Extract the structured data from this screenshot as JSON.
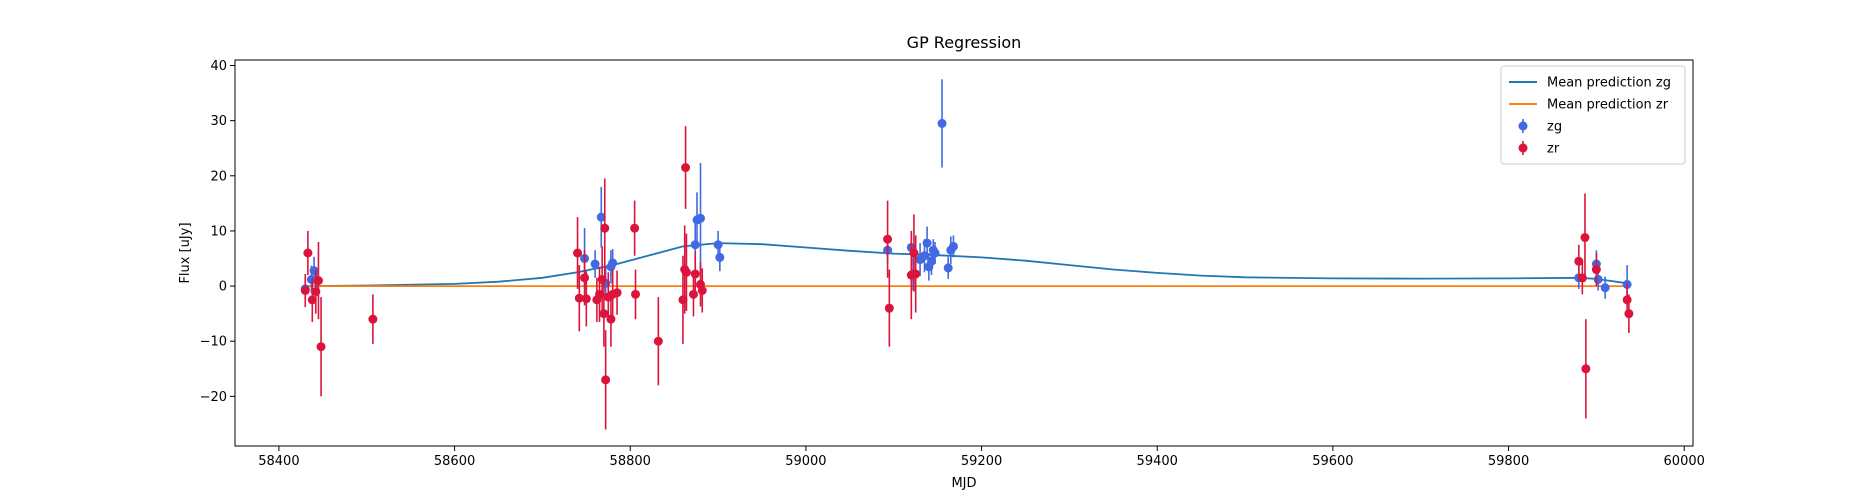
{
  "chart_data": {
    "type": "scatter",
    "title": "GP Regression",
    "xlabel": "MJD",
    "ylabel": "Flux [uJy]",
    "xlim": [
      58350,
      60010
    ],
    "ylim": [
      -29,
      41
    ],
    "xticks": [
      58400,
      58600,
      58800,
      59000,
      59200,
      59400,
      59600,
      59800,
      60000
    ],
    "yticks": [
      -20,
      -10,
      0,
      10,
      20,
      30,
      40
    ],
    "legend": {
      "position": "top-right",
      "entries": [
        {
          "label": "Mean prediction zg",
          "kind": "line",
          "color": "#1f77b4"
        },
        {
          "label": "Mean prediction zr",
          "kind": "line",
          "color": "#ff7f0e"
        },
        {
          "label": "zg",
          "kind": "errorbar",
          "color": "#4169e1"
        },
        {
          "label": "zr",
          "kind": "errorbar",
          "color": "#dc143c"
        }
      ]
    },
    "lines": [
      {
        "name": "Mean prediction zg",
        "color": "#1f77b4",
        "points": [
          [
            58430,
            0.0
          ],
          [
            58500,
            0.1
          ],
          [
            58600,
            0.4
          ],
          [
            58650,
            0.8
          ],
          [
            58700,
            1.5
          ],
          [
            58740,
            2.5
          ],
          [
            58780,
            3.8
          ],
          [
            58820,
            5.5
          ],
          [
            58860,
            7.2
          ],
          [
            58900,
            7.8
          ],
          [
            58950,
            7.6
          ],
          [
            59000,
            7.0
          ],
          [
            59050,
            6.4
          ],
          [
            59100,
            5.9
          ],
          [
            59150,
            5.6
          ],
          [
            59200,
            5.2
          ],
          [
            59250,
            4.6
          ],
          [
            59300,
            3.8
          ],
          [
            59350,
            3.0
          ],
          [
            59400,
            2.4
          ],
          [
            59450,
            1.9
          ],
          [
            59500,
            1.6
          ],
          [
            59600,
            1.4
          ],
          [
            59700,
            1.35
          ],
          [
            59800,
            1.4
          ],
          [
            59880,
            1.5
          ],
          [
            59900,
            1.3
          ],
          [
            59935,
            0.5
          ]
        ]
      },
      {
        "name": "Mean prediction zr",
        "color": "#ff7f0e",
        "points": [
          [
            58430,
            0.0
          ],
          [
            59935,
            0.0
          ]
        ]
      }
    ],
    "series": [
      {
        "name": "zg",
        "color": "#4169e1",
        "points": [
          {
            "x": 58430,
            "y": -0.5,
            "err": 2
          },
          {
            "x": 58437,
            "y": 1.2,
            "err": 2.5
          },
          {
            "x": 58440,
            "y": 2.8,
            "err": 2.5
          },
          {
            "x": 58443,
            "y": 1.0,
            "err": 2
          },
          {
            "x": 58748,
            "y": 5.0,
            "err": 5.5
          },
          {
            "x": 58760,
            "y": 4.0,
            "err": 2.5
          },
          {
            "x": 58767,
            "y": 12.5,
            "err": 5.5
          },
          {
            "x": 58772,
            "y": 0.5,
            "err": 3
          },
          {
            "x": 58778,
            "y": 3.5,
            "err": 3
          },
          {
            "x": 58780,
            "y": 4.2,
            "err": 2.5
          },
          {
            "x": 58874,
            "y": 7.5,
            "err": 4
          },
          {
            "x": 58876,
            "y": 12.0,
            "err": 5
          },
          {
            "x": 58880,
            "y": 12.3,
            "err": 10
          },
          {
            "x": 58900,
            "y": 7.5,
            "err": 2.5
          },
          {
            "x": 58902,
            "y": 5.2,
            "err": 2.5
          },
          {
            "x": 59093,
            "y": 6.5,
            "err": 2.5
          },
          {
            "x": 59120,
            "y": 7.0,
            "err": 3
          },
          {
            "x": 59122,
            "y": 2.2,
            "err": 3
          },
          {
            "x": 59130,
            "y": 4.8,
            "err": 3
          },
          {
            "x": 59135,
            "y": 5.5,
            "err": 3
          },
          {
            "x": 59138,
            "y": 7.8,
            "err": 3
          },
          {
            "x": 59140,
            "y": 3.5,
            "err": 2.5
          },
          {
            "x": 59143,
            "y": 4.5,
            "err": 2.5
          },
          {
            "x": 59145,
            "y": 6.5,
            "err": 2
          },
          {
            "x": 59147,
            "y": 6.0,
            "err": 2
          },
          {
            "x": 59155,
            "y": 29.5,
            "err": 8
          },
          {
            "x": 59162,
            "y": 3.3,
            "err": 2
          },
          {
            "x": 59165,
            "y": 6.5,
            "err": 2.5
          },
          {
            "x": 59168,
            "y": 7.2,
            "err": 2
          },
          {
            "x": 59880,
            "y": 1.5,
            "err": 2
          },
          {
            "x": 59900,
            "y": 4.0,
            "err": 2.5
          },
          {
            "x": 59902,
            "y": 1.2,
            "err": 2
          },
          {
            "x": 59910,
            "y": -0.3,
            "err": 2
          },
          {
            "x": 59935,
            "y": 0.3,
            "err": 3.5
          }
        ]
      },
      {
        "name": "zr",
        "color": "#dc143c",
        "points": [
          {
            "x": 58430,
            "y": -0.8,
            "err": 3
          },
          {
            "x": 58433,
            "y": 6.0,
            "err": 4
          },
          {
            "x": 58438,
            "y": -2.5,
            "err": 4
          },
          {
            "x": 58442,
            "y": -1.0,
            "err": 4
          },
          {
            "x": 58445,
            "y": 1.0,
            "err": 7
          },
          {
            "x": 58448,
            "y": -11.0,
            "err": 9
          },
          {
            "x": 58507,
            "y": -6.0,
            "err": 4.5
          },
          {
            "x": 58740,
            "y": 6.0,
            "err": 6.5
          },
          {
            "x": 58742,
            "y": -2.2,
            "err": 6
          },
          {
            "x": 58748,
            "y": 1.5,
            "err": 5
          },
          {
            "x": 58750,
            "y": -2.3,
            "err": 5
          },
          {
            "x": 58762,
            "y": -2.5,
            "err": 4
          },
          {
            "x": 58765,
            "y": -1.5,
            "err": 5
          },
          {
            "x": 58768,
            "y": 1.2,
            "err": 6
          },
          {
            "x": 58770,
            "y": -5.0,
            "err": 6
          },
          {
            "x": 58771,
            "y": 10.5,
            "err": 9
          },
          {
            "x": 58772,
            "y": -17.0,
            "err": 9
          },
          {
            "x": 58775,
            "y": -2.0,
            "err": 4.5
          },
          {
            "x": 58778,
            "y": -6.0,
            "err": 5
          },
          {
            "x": 58780,
            "y": -1.5,
            "err": 4.5
          },
          {
            "x": 58785,
            "y": -1.2,
            "err": 4
          },
          {
            "x": 58805,
            "y": 10.5,
            "err": 5
          },
          {
            "x": 58806,
            "y": -1.5,
            "err": 4.5
          },
          {
            "x": 58832,
            "y": -10.0,
            "err": 8
          },
          {
            "x": 58860,
            "y": -2.5,
            "err": 8
          },
          {
            "x": 58862,
            "y": 3.0,
            "err": 8
          },
          {
            "x": 58863,
            "y": 21.5,
            "err": 7.5
          },
          {
            "x": 58864,
            "y": 2.5,
            "err": 7
          },
          {
            "x": 58872,
            "y": -1.5,
            "err": 4
          },
          {
            "x": 58874,
            "y": 2.2,
            "err": 4
          },
          {
            "x": 58880,
            "y": 0.3,
            "err": 4
          },
          {
            "x": 58882,
            "y": -0.8,
            "err": 4
          },
          {
            "x": 59093,
            "y": 8.5,
            "err": 7
          },
          {
            "x": 59095,
            "y": -4.0,
            "err": 7
          },
          {
            "x": 59120,
            "y": 2.0,
            "err": 8
          },
          {
            "x": 59123,
            "y": 6.0,
            "err": 7
          },
          {
            "x": 59125,
            "y": 2.2,
            "err": 7
          },
          {
            "x": 59880,
            "y": 4.5,
            "err": 3
          },
          {
            "x": 59884,
            "y": 1.5,
            "err": 3
          },
          {
            "x": 59887,
            "y": 8.8,
            "err": 8
          },
          {
            "x": 59888,
            "y": -15.0,
            "err": 9
          },
          {
            "x": 59900,
            "y": 3.0,
            "err": 3
          },
          {
            "x": 59935,
            "y": -2.5,
            "err": 3
          },
          {
            "x": 59937,
            "y": -5.0,
            "err": 3.5
          }
        ]
      }
    ]
  }
}
